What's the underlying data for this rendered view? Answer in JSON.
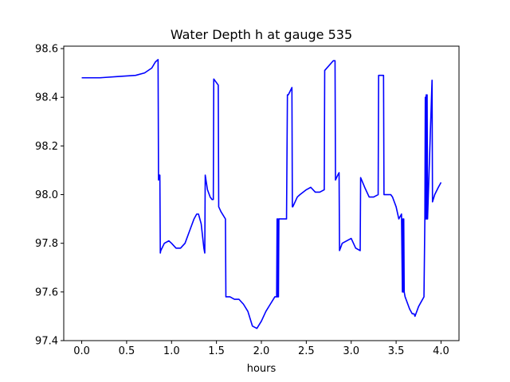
{
  "chart_data": {
    "type": "line",
    "title": "Water Depth h at gauge 535",
    "xlabel": "hours",
    "ylabel": "",
    "xlim": [
      -0.2,
      4.2
    ],
    "ylim": [
      97.4,
      98.61
    ],
    "xticks": [
      0.0,
      0.5,
      1.0,
      1.5,
      2.0,
      2.5,
      3.0,
      3.5,
      4.0
    ],
    "xtick_labels": [
      "0.0",
      "0.5",
      "1.0",
      "1.5",
      "2.0",
      "2.5",
      "3.0",
      "3.5",
      "4.0"
    ],
    "yticks": [
      97.4,
      97.6,
      97.8,
      98.0,
      98.2,
      98.4,
      98.6
    ],
    "ytick_labels": [
      "97.4",
      "97.6",
      "97.8",
      "98.0",
      "98.2",
      "98.4",
      "98.6"
    ],
    "grid": false,
    "series": [
      {
        "color": "#0000ff",
        "x": [
          0.0,
          0.2,
          0.4,
          0.6,
          0.7,
          0.78,
          0.82,
          0.85,
          0.855,
          0.86,
          0.87,
          0.875,
          0.88,
          0.92,
          0.97,
          1.0,
          1.05,
          1.1,
          1.15,
          1.2,
          1.25,
          1.28,
          1.3,
          1.33,
          1.36,
          1.37,
          1.375,
          1.4,
          1.43,
          1.45,
          1.465,
          1.47,
          1.52,
          1.525,
          1.55,
          1.6,
          1.605,
          1.65,
          1.7,
          1.75,
          1.8,
          1.85,
          1.9,
          1.95,
          2.0,
          2.05,
          2.1,
          2.15,
          2.17,
          2.175,
          2.18,
          2.185,
          2.19,
          2.195,
          2.2,
          2.25,
          2.28,
          2.29,
          2.3,
          2.34,
          2.345,
          2.35,
          2.4,
          2.43,
          2.5,
          2.55,
          2.6,
          2.65,
          2.7,
          2.705,
          2.8,
          2.82,
          2.825,
          2.85,
          2.865,
          2.87,
          2.88,
          2.9,
          3.0,
          3.05,
          3.1,
          3.105,
          3.15,
          3.2,
          3.25,
          3.3,
          3.305,
          3.35,
          3.36,
          3.365,
          3.4,
          3.44,
          3.46,
          3.5,
          3.53,
          3.56,
          3.57,
          3.575,
          3.58,
          3.585,
          3.59,
          3.6,
          3.62,
          3.65,
          3.68,
          3.7,
          3.71,
          3.72,
          3.73,
          3.75,
          3.78,
          3.81,
          3.82,
          3.825,
          3.83,
          3.835,
          3.84,
          3.845,
          3.85,
          3.9,
          3.905,
          3.93,
          3.97,
          4.0
        ],
        "y": [
          98.48,
          98.48,
          98.485,
          98.49,
          98.5,
          98.52,
          98.545,
          98.555,
          98.06,
          98.08,
          98.08,
          97.76,
          97.77,
          97.8,
          97.81,
          97.8,
          97.78,
          97.78,
          97.8,
          97.85,
          97.9,
          97.92,
          97.92,
          97.88,
          97.78,
          97.76,
          98.08,
          98.02,
          97.99,
          97.98,
          97.98,
          98.475,
          98.45,
          97.95,
          97.93,
          97.9,
          97.58,
          97.58,
          97.57,
          97.57,
          97.55,
          97.52,
          97.46,
          97.45,
          97.48,
          97.52,
          97.55,
          97.58,
          97.58,
          97.9,
          97.58,
          97.9,
          97.58,
          97.9,
          97.9,
          97.9,
          97.9,
          98.41,
          98.41,
          98.44,
          97.95,
          97.95,
          97.99,
          98.0,
          98.02,
          98.03,
          98.01,
          98.01,
          98.02,
          98.51,
          98.55,
          98.55,
          98.06,
          98.08,
          98.09,
          97.77,
          97.78,
          97.8,
          97.82,
          97.78,
          97.77,
          98.07,
          98.03,
          97.99,
          97.99,
          98.0,
          98.49,
          98.49,
          98.49,
          98.0,
          98.0,
          98.0,
          97.99,
          97.95,
          97.9,
          97.92,
          97.6,
          97.9,
          97.6,
          97.9,
          97.6,
          97.58,
          97.56,
          97.53,
          97.51,
          97.51,
          97.5,
          97.51,
          97.52,
          97.54,
          97.56,
          97.58,
          97.9,
          98.4,
          97.9,
          98.41,
          97.9,
          98.41,
          97.9,
          98.47,
          97.97,
          98.0,
          98.03,
          98.05
        ]
      }
    ]
  }
}
